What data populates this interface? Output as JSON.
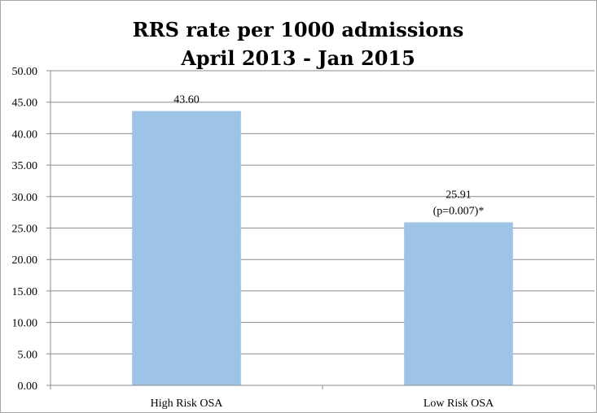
{
  "chart_data": {
    "type": "bar",
    "title": "RRS rate per 1000 admissions",
    "subtitle": "April 2013 - Jan 2015",
    "categories": [
      "High Risk OSA",
      "Low Risk OSA"
    ],
    "values": [
      43.6,
      25.91
    ],
    "data_labels": [
      [
        "43.60"
      ],
      [
        "25.91",
        "(p=0.007)*"
      ]
    ],
    "y_ticks": [
      "0.00",
      "5.00",
      "10.00",
      "15.00",
      "20.00",
      "25.00",
      "30.00",
      "35.00",
      "40.00",
      "45.00",
      "50.00"
    ],
    "ylim": [
      0,
      50
    ],
    "grid": true,
    "legend": "none",
    "bar_color": "#9dc3e6",
    "grid_color": "#8c8c8c"
  }
}
